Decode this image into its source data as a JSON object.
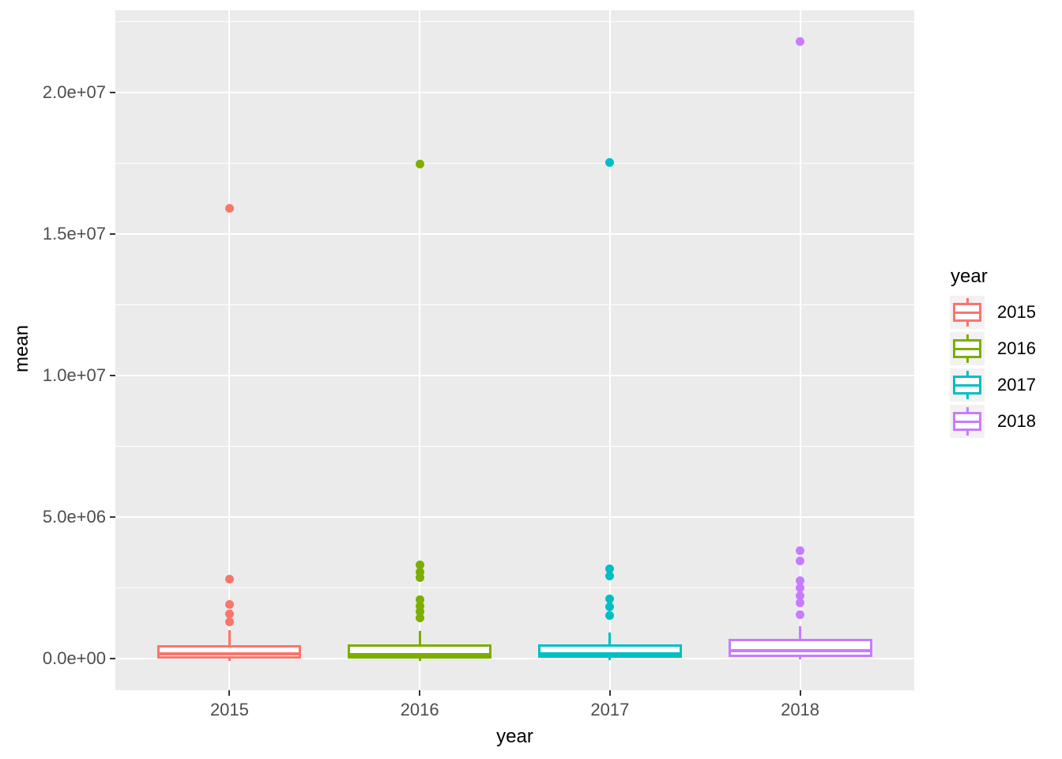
{
  "chart_data": {
    "type": "boxplot",
    "title": "",
    "xlabel": "year",
    "ylabel": "mean",
    "categories": [
      "2015",
      "2016",
      "2017",
      "2018"
    ],
    "y_axis": {
      "tick_values": [
        0,
        5000000,
        10000000,
        15000000,
        20000000
      ],
      "tick_labels": [
        "0.0e+00",
        "5.0e+06",
        "1.0e+07",
        "1.5e+07",
        "2.0e+07"
      ],
      "minor_tick_values": [
        2500000,
        7500000,
        12500000,
        17500000,
        22500000
      ],
      "ylim": [
        -1120000,
        22900000
      ],
      "grid": true
    },
    "series": [
      {
        "name": "2015",
        "color": "#F8766D",
        "box": {
          "min": 0,
          "q1": 10000,
          "median": 160000,
          "q3": 475000,
          "max": 1000000
        },
        "outliers": [
          1310000,
          1590000,
          1900000,
          2820000,
          15900000
        ]
      },
      {
        "name": "2016",
        "color": "#7CAE00",
        "box": {
          "min": 0,
          "q1": 10000,
          "median": 150000,
          "q3": 500000,
          "max": 980000
        },
        "outliers": [
          1450000,
          1650000,
          1870000,
          2090000,
          2850000,
          3070000,
          3320000,
          17460000
        ]
      },
      {
        "name": "2017",
        "color": "#00BFC4",
        "box": {
          "min": 0,
          "q1": 20000,
          "median": 170000,
          "q3": 500000,
          "max": 920000
        },
        "outliers": [
          1510000,
          1820000,
          2120000,
          2930000,
          3180000,
          17540000
        ]
      },
      {
        "name": "2018",
        "color": "#C77CFF",
        "box": {
          "min": 0,
          "q1": 60000,
          "median": 280000,
          "q3": 700000,
          "max": 1150000
        },
        "outliers": [
          1560000,
          1960000,
          2210000,
          2490000,
          2740000,
          3440000,
          3800000,
          21790000
        ]
      }
    ],
    "legend": {
      "title": "year",
      "entries": [
        "2015",
        "2016",
        "2017",
        "2018"
      ],
      "position": "right"
    },
    "panel_background": "#EBEBEB",
    "grid_color": "#FFFFFF",
    "tick_label_color": "#4D4D4D",
    "axis_title_color": "#000000"
  }
}
